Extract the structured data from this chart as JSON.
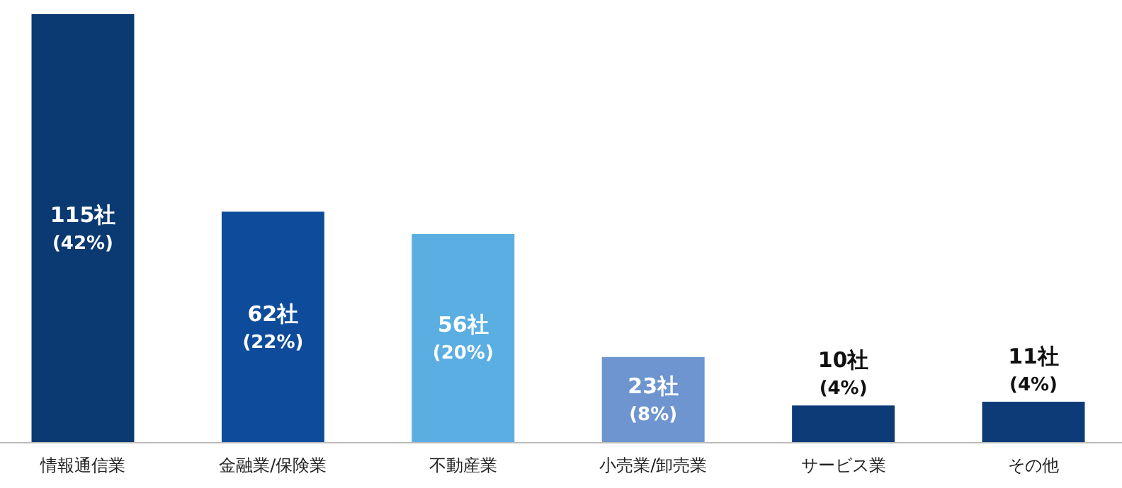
{
  "chart_data": {
    "type": "bar",
    "categories": [
      "情報通信業",
      "金融業/保険業",
      "不動産業",
      "小売業/卸売業",
      "サービス業",
      "その他"
    ],
    "values": [
      115,
      62,
      56,
      23,
      10,
      11
    ],
    "colors": [
      "#0b3a72",
      "#0e4c9b",
      "#5aaee2",
      "#6e95cf",
      "#0d3b78",
      "#0d3b78"
    ],
    "value_labels": [
      "115社\n(42%)",
      "62社\n(22%)",
      "56社\n(20%)",
      "23社\n(8%)",
      "10社\n(4%)",
      "11社\n(4%)"
    ]
  }
}
